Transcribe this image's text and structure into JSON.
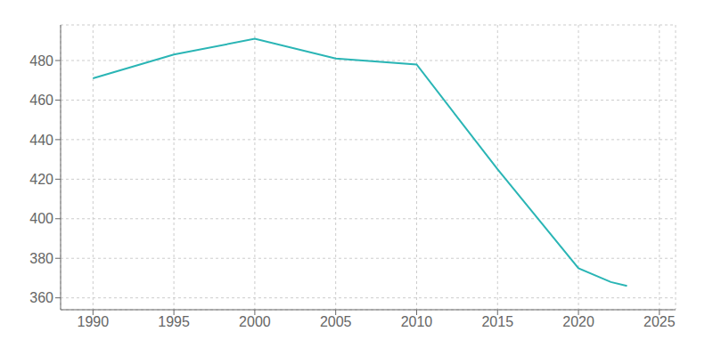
{
  "chart_data": {
    "type": "line",
    "x": [
      1990,
      1995,
      2000,
      2005,
      2010,
      2015,
      2020,
      2022,
      2023
    ],
    "values": [
      471,
      483,
      491,
      481,
      478,
      425,
      375,
      368,
      366
    ],
    "color": "#2ab5b5",
    "xlim": [
      1988,
      2026
    ],
    "ylim": [
      354,
      498
    ],
    "xticks": [
      1990,
      1995,
      2000,
      2005,
      2010,
      2015,
      2020,
      2025
    ],
    "yticks": [
      360,
      380,
      400,
      420,
      440,
      460,
      480
    ],
    "grid": true
  }
}
